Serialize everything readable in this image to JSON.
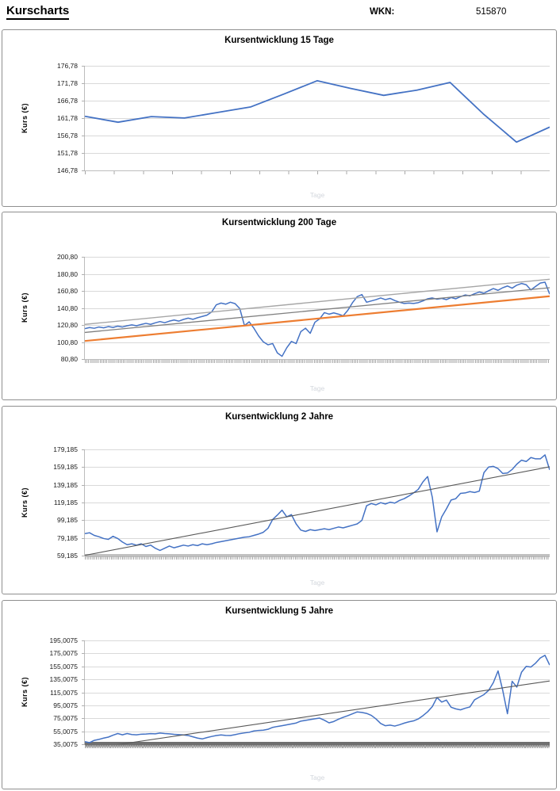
{
  "header": {
    "title": "Kurscharts",
    "wkn_label": "WKN:",
    "wkn_value": "515870"
  },
  "chart_data": [
    {
      "type": "line",
      "title": "Kursentwicklung 15 Tage",
      "ylabel": "Kurs (€)",
      "xlabel": "Tage",
      "y_ticks": [
        "176,78",
        "171,78",
        "166,78",
        "161,78",
        "156,78",
        "151,78",
        "146,78"
      ],
      "ylim": [
        146.78,
        176.78
      ],
      "x_tick_count": 16,
      "grid": true,
      "legend": false,
      "series": [
        {
          "name": "kurs",
          "color": "#4472c4",
          "width": 1.8,
          "values": [
            162.3,
            160.6,
            162.2,
            161.8,
            163.4,
            165.0,
            168.7,
            172.5,
            170.3,
            168.3,
            169.8,
            172.0,
            163.0,
            154.9,
            159.2
          ]
        }
      ]
    },
    {
      "type": "line",
      "title": "Kursentwicklung 200 Tage",
      "ylabel": "Kurs (€)",
      "xlabel": "Tage",
      "y_ticks": [
        "200,80",
        "180,80",
        "160,80",
        "140,80",
        "120,80",
        "100,80",
        "80,80"
      ],
      "ylim": [
        80.8,
        200.8
      ],
      "x_tick_count": 280,
      "grid": true,
      "legend": false,
      "series": [
        {
          "name": "kurs",
          "color": "#4472c4",
          "width": 1.5,
          "values": [
            116.5,
            117.8,
            116.9,
            118.4,
            117.4,
            118.9,
            117.9,
            119.4,
            118.4,
            119.9,
            120.9,
            119.9,
            121.4,
            122.7,
            121.5,
            123.3,
            124.8,
            123.4,
            125.3,
            126.6,
            125.3,
            127.3,
            128.8,
            127.4,
            129.3,
            130.8,
            132.3,
            136,
            144.5,
            146.5,
            145.2,
            147.5,
            145.8,
            140,
            120,
            124.5,
            117,
            108,
            101,
            97.5,
            99,
            88,
            84,
            94,
            101.5,
            99,
            113,
            117,
            111,
            124,
            128,
            135.3,
            133.5,
            135,
            133.5,
            131.5,
            138,
            147,
            154,
            156.5,
            147.5,
            149,
            150.5,
            152.5,
            150.5,
            152,
            149.5,
            147.5,
            146,
            146.5,
            146,
            147,
            149,
            151.5,
            152.5,
            151,
            152,
            150.5,
            153,
            151.5,
            154,
            156,
            155,
            157.5,
            159.5,
            158,
            161,
            163.5,
            161.5,
            164.5,
            166.5,
            164,
            167.5,
            169.5,
            168,
            162,
            166,
            170,
            171,
            157
          ]
        },
        {
          "name": "trendkanal-oben",
          "color": "#a6a6a6",
          "width": 1.4,
          "values": [
            121.5,
            174.5
          ]
        },
        {
          "name": "trendkanal-mitte",
          "color": "#7f7f7f",
          "width": 1.3,
          "values": [
            112,
            164.5
          ]
        },
        {
          "name": "trendkanal-unten",
          "color": "#ed7d31",
          "width": 2.2,
          "values": [
            102,
            154.5
          ]
        }
      ]
    },
    {
      "type": "line",
      "title": "Kursentwicklung 2 Jahre",
      "ylabel": "Kurs (€)",
      "xlabel": "Tage",
      "y_ticks": [
        "179,185",
        "159,185",
        "139,185",
        "119,185",
        "99,185",
        "79,185",
        "59,185"
      ],
      "ylim": [
        59.185,
        179.185
      ],
      "x_tick_count": 250,
      "grid": true,
      "legend": false,
      "baseline": {
        "value": 59.185,
        "color": "#c0c0c0",
        "height": 4
      },
      "series": [
        {
          "name": "kurs",
          "color": "#4472c4",
          "width": 1.5,
          "values": [
            84,
            85,
            82,
            80.5,
            78.5,
            77.5,
            81,
            78.5,
            74.5,
            71.5,
            72.5,
            71,
            72.5,
            69.5,
            71,
            67.5,
            65,
            67.5,
            70,
            68,
            69.5,
            71,
            70,
            71.5,
            70.5,
            72.5,
            71.5,
            72.5,
            74,
            75,
            76,
            77,
            78,
            79,
            80,
            80.5,
            82,
            83.5,
            85.5,
            90,
            100,
            105,
            110.5,
            103,
            105.5,
            95,
            88,
            86.5,
            88.5,
            87.5,
            88.5,
            89.5,
            88.5,
            90,
            91.5,
            90.5,
            92,
            93.5,
            95,
            99,
            115.5,
            118,
            116.5,
            119,
            117.5,
            119.5,
            118.5,
            121.5,
            123.5,
            126.5,
            130,
            134,
            142.5,
            148.5,
            125,
            86,
            103,
            112,
            122,
            123.5,
            129.5,
            130,
            131.5,
            130.5,
            132,
            153,
            159.3,
            160,
            157.5,
            152,
            152.5,
            156.5,
            162.5,
            167,
            165.5,
            170,
            168.5,
            168.5,
            173,
            156
          ]
        },
        {
          "name": "trendlinie",
          "color": "#595959",
          "width": 1.1,
          "values": [
            59.5,
            159.5
          ]
        }
      ]
    },
    {
      "type": "line",
      "title": "Kursentwicklung 5 Jahre",
      "ylabel": "Kurs (€)",
      "xlabel": "Tage",
      "y_ticks": [
        "195,0075",
        "175,0075",
        "155,0075",
        "135,0075",
        "115,0075",
        "95,0075",
        "75,0075",
        "55,0075",
        "35,0075"
      ],
      "ylim": [
        35.0075,
        195.0075
      ],
      "x_tick_count": 400,
      "grid": true,
      "legend": false,
      "baseline": {
        "value": 35.0075,
        "color": "#6f6f6f",
        "height": 6
      },
      "series": [
        {
          "name": "kurs",
          "color": "#4472c4",
          "width": 1.5,
          "values": [
            39,
            37.5,
            41,
            42.5,
            44.5,
            46,
            49,
            51.5,
            49.5,
            51.5,
            50,
            49.5,
            50.5,
            50.8,
            51.3,
            51,
            52.2,
            51.5,
            51,
            50.3,
            49.8,
            49.3,
            48.5,
            46.5,
            44.5,
            43.2,
            45.2,
            47,
            48.5,
            49.3,
            48.6,
            48.4,
            49.8,
            51.4,
            52.5,
            53.4,
            55.5,
            56.3,
            56.7,
            58,
            61,
            62.4,
            63.6,
            64.9,
            66.3,
            67.7,
            70.6,
            71.8,
            73,
            74.2,
            75.3,
            72,
            68,
            70,
            73.5,
            76.5,
            79,
            82,
            84.8,
            84,
            82.5,
            79.5,
            74,
            67,
            63.5,
            64.5,
            63,
            65,
            67.5,
            69.5,
            71,
            74,
            79,
            85,
            93,
            107,
            100,
            103,
            92,
            89.5,
            88,
            90.5,
            92.5,
            103.5,
            107.5,
            111.5,
            118,
            130,
            148,
            118,
            82,
            132,
            123,
            146,
            155,
            154,
            160,
            168,
            172,
            157
          ]
        },
        {
          "name": "trendlinie",
          "color": "#595959",
          "width": 1.1,
          "values": [
            27,
            132.5
          ]
        }
      ]
    }
  ]
}
